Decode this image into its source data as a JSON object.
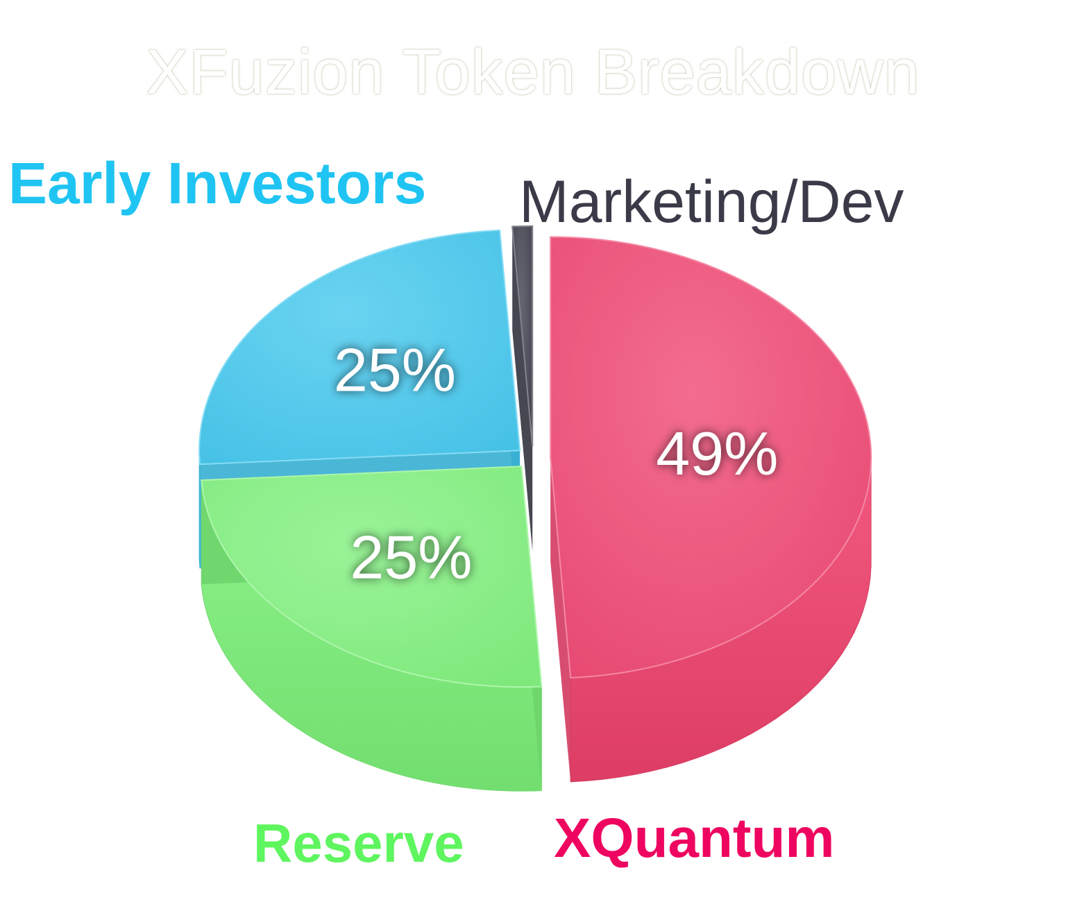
{
  "chart_data": {
    "type": "pie",
    "title": "XFuzion Token Breakdown",
    "slices": [
      {
        "label": "XQuantum",
        "value": 49,
        "value_label": "49%",
        "color": "#f0426e"
      },
      {
        "label": "Reserve",
        "value": 25,
        "value_label": "25%",
        "color": "#7df17a"
      },
      {
        "label": "Early Investors",
        "value": 25,
        "value_label": "25%",
        "color": "#3fc7ef"
      },
      {
        "label": "Marketing/Dev",
        "value": 1,
        "value_label": "",
        "color": "#3a3a48"
      }
    ],
    "label_colors": {
      "XQuantum": "#ee0560",
      "Reserve": "#5ef55e",
      "Early Investors": "#1fc4f2",
      "Marketing/Dev": "#3a3a48"
    },
    "style": "3d-exploded"
  }
}
